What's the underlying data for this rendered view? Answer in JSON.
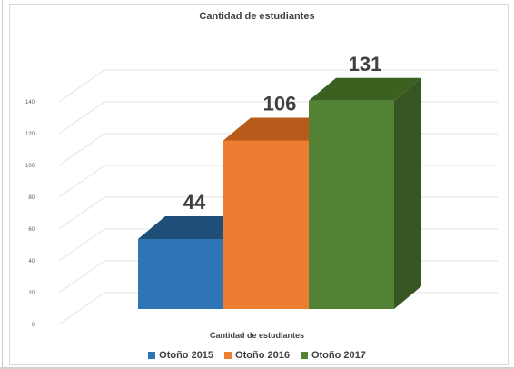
{
  "chart_data": {
    "type": "bar",
    "title": "Cantidad de estudiantes",
    "xlabel": "Cantidad de estudiantes",
    "ylabel": "",
    "ylim": [
      0,
      140
    ],
    "yticks": [
      0,
      20,
      40,
      60,
      80,
      100,
      120,
      140
    ],
    "grid": true,
    "three_d": true,
    "legend_position": "bottom",
    "series": [
      {
        "name": "Otoño 2015",
        "value": 44,
        "label": "44",
        "color": "#2e75b6",
        "top_color": "#1f4e79",
        "side_color": "#1f4e79"
      },
      {
        "name": "Otoño 2016",
        "value": 106,
        "label": "106",
        "color": "#ed7d31",
        "top_color": "#b85a1a",
        "side_color": "#c55a11"
      },
      {
        "name": "Otoño 2017",
        "value": 131,
        "label": "131",
        "color": "#548235",
        "top_color": "#3a6120",
        "side_color": "#375623"
      }
    ]
  }
}
